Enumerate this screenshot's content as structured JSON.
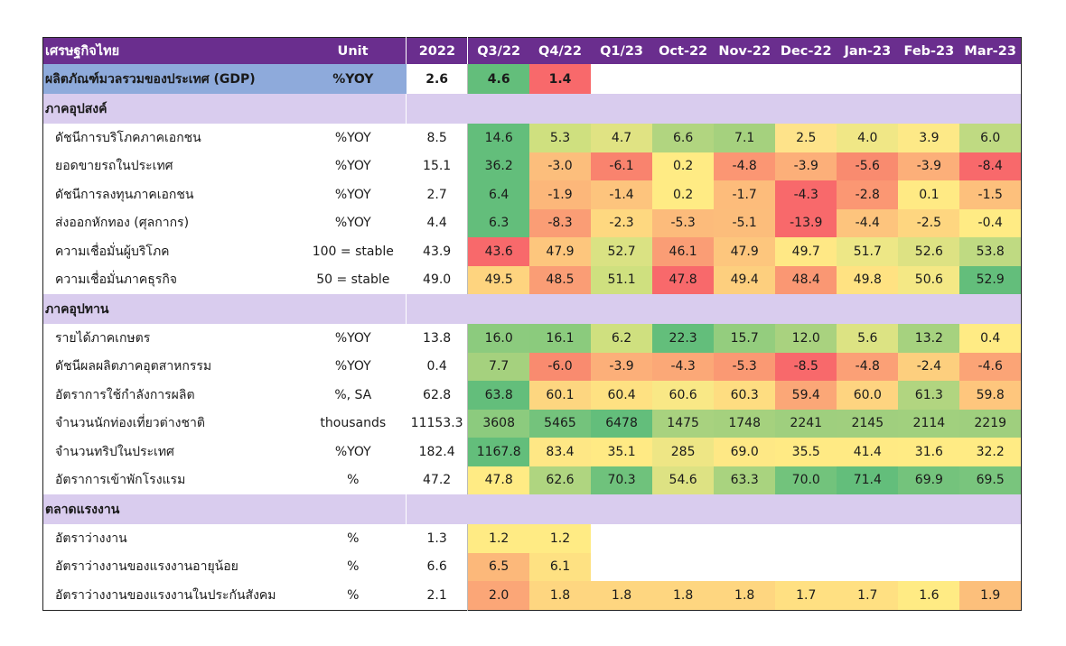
{
  "chart_data": {
    "type": "table",
    "header": {
      "name": "เศรษฐกิจไทย",
      "unit": "Unit",
      "year": "2022",
      "periods": [
        "Q3/22",
        "Q4/22",
        "Q1/23",
        "Oct-22",
        "Nov-22",
        "Dec-22",
        "Jan-23",
        "Feb-23",
        "Mar-23"
      ]
    },
    "gdp": {
      "name": "ผลิตภัณฑ์มวลรวมของประเทศ (GDP)",
      "unit": "%YOY",
      "y2022": "2.6",
      "values": [
        "4.6",
        "1.4",
        "",
        "",
        "",
        "",
        "",
        "",
        ""
      ],
      "colors": [
        "#63be7b",
        "#f8696b",
        "",
        "",
        "",
        "",
        "",
        "",
        ""
      ]
    },
    "sections": [
      {
        "title": "ภาคอุปสงค์",
        "rows": [
          {
            "name": "ดัชนีการบริโภคภาคเอกชน",
            "unit": "%YOY",
            "y2022": "8.5",
            "values": [
              "14.6",
              "5.3",
              "4.7",
              "6.6",
              "7.1",
              "2.5",
              "4.0",
              "3.9",
              "6.0"
            ],
            "colors": [
              "#63be7b",
              "#cfe07f",
              "#e0e383",
              "#b1d580",
              "#a5d17e",
              "#fee38a",
              "#f0e786",
              "#fde987",
              "#bfda82"
            ]
          },
          {
            "name": "ยอดขายรถในประเทศ",
            "unit": "%YOY",
            "y2022": "15.1",
            "values": [
              "36.2",
              "-3.0",
              "-6.1",
              "0.2",
              "-4.8",
              "-3.9",
              "-5.6",
              "-3.9",
              "-8.4"
            ],
            "colors": [
              "#63be7b",
              "#fcbe7c",
              "#f9836e",
              "#ffeb84",
              "#fb9673",
              "#fcaf79",
              "#f98b6f",
              "#fcaf79",
              "#f8696b"
            ]
          },
          {
            "name": "ดัชนีการลงทุนภาคเอกชน",
            "unit": "%YOY",
            "y2022": "2.7",
            "values": [
              "6.4",
              "-1.9",
              "-1.4",
              "0.2",
              "-1.7",
              "-4.3",
              "-2.8",
              "0.1",
              "-1.5"
            ],
            "colors": [
              "#63be7b",
              "#fcb77a",
              "#fdc47d",
              "#ffeb84",
              "#fdbc7b",
              "#f8696b",
              "#fb9773",
              "#ffea84",
              "#fdc07c"
            ]
          },
          {
            "name": "ส่งออกหักทอง (ศุลกากร)",
            "unit": "%YOY",
            "y2022": "4.4",
            "values": [
              "6.3",
              "-8.3",
              "-2.3",
              "-5.3",
              "-5.1",
              "-13.9",
              "-4.4",
              "-2.5",
              "-0.4"
            ],
            "colors": [
              "#63be7b",
              "#fa9d75",
              "#fed880",
              "#fcbb7b",
              "#fcbd7b",
              "#f8696b",
              "#fdc47d",
              "#fed680",
              "#ffeb84"
            ]
          },
          {
            "name": "ความเชื่อมั่นผู้บริโภค",
            "unit": "100 = stable",
            "y2022": "43.9",
            "values": [
              "43.6",
              "47.9",
              "52.7",
              "46.1",
              "47.9",
              "49.7",
              "51.7",
              "52.6",
              "53.8"
            ],
            "colors": [
              "#f8696b",
              "#fdc67d",
              "#dae283",
              "#fa9d75",
              "#fdc67d",
              "#ffe885",
              "#ede786",
              "#dde283",
              "#bfda82"
            ]
          },
          {
            "name": "ความเชื่อมั่นภาคธุรกิจ",
            "unit": "50 = stable",
            "y2022": "49.0",
            "values": [
              "49.5",
              "48.5",
              "51.1",
              "47.8",
              "49.4",
              "48.4",
              "49.8",
              "50.6",
              "52.9"
            ],
            "colors": [
              "#fed47f",
              "#fa9d75",
              "#cfe07f",
              "#f8696b",
              "#fdcf7e",
              "#fa9773",
              "#ffe282",
              "#f4e885",
              "#63be7b"
            ]
          }
        ]
      },
      {
        "title": "ภาคอุปทาน",
        "rows": [
          {
            "name": "รายได้ภาคเกษตร",
            "unit": "%YOY",
            "y2022": "13.8",
            "values": [
              "16.0",
              "16.1",
              "6.2",
              "22.3",
              "15.7",
              "12.0",
              "5.6",
              "13.2",
              "0.4"
            ],
            "colors": [
              "#8ccb7e",
              "#8bcb7d",
              "#cfe07f",
              "#63be7b",
              "#94cd7e",
              "#a9d27f",
              "#dce383",
              "#a6d27f",
              "#ffeb84"
            ]
          },
          {
            "name": "ดัชนีผลผลิตภาคอุตสาหกรรม",
            "unit": "%YOY",
            "y2022": "0.4",
            "values": [
              "7.7",
              "-6.0",
              "-3.9",
              "-4.3",
              "-5.3",
              "-8.5",
              "-4.8",
              "-2.4",
              "-4.6"
            ],
            "colors": [
              "#a5d17e",
              "#f98b6f",
              "#fcaf79",
              "#fba877",
              "#fa9973",
              "#f8696b",
              "#fba076",
              "#fdcf7e",
              "#fba476"
            ]
          },
          {
            "name": "อัตราการใช้กำลังการผลิต",
            "unit": "%, SA",
            "y2022": "62.8",
            "values": [
              "63.8",
              "60.1",
              "60.4",
              "60.6",
              "60.3",
              "59.4",
              "60.0",
              "61.3",
              "59.8"
            ],
            "colors": [
              "#63be7b",
              "#fdd680",
              "#fee182",
              "#f9e886",
              "#fedd81",
              "#fba777",
              "#fed480",
              "#b1d580",
              "#fec67d"
            ]
          },
          {
            "name": "จำนวนนักท่องเที่ยวต่างชาติ",
            "unit": "thousands",
            "y2022": "11153.3",
            "values": [
              "3608",
              "5465",
              "6478",
              "1475",
              "1748",
              "2241",
              "2145",
              "2114",
              "2219"
            ],
            "colors": [
              "#8ccb7e",
              "#74c37c",
              "#63be7b",
              "#a8d27f",
              "#a5d17e",
              "#9fcf7e",
              "#a0cf7e",
              "#a1d07e",
              "#9fcf7e"
            ]
          },
          {
            "name": "จำนวนทริปในประเทศ",
            "unit": "%YOY",
            "y2022": "182.4",
            "values": [
              "1167.8",
              "83.4",
              "35.1",
              "285",
              "69.0",
              "35.5",
              "41.4",
              "31.6",
              "32.2"
            ],
            "colors": [
              "#63be7b",
              "#fee785",
              "#ffea84",
              "#eee685",
              "#fee885",
              "#ffea84",
              "#ffea84",
              "#ffeb84",
              "#ffeb84"
            ]
          },
          {
            "name": "อัตราการเข้าพักโรงแรม",
            "unit": "%",
            "y2022": "47.2",
            "values": [
              "47.8",
              "62.6",
              "70.3",
              "54.6",
              "63.3",
              "70.0",
              "71.4",
              "69.9",
              "69.5"
            ],
            "colors": [
              "#ffeb84",
              "#afd580",
              "#6fc27c",
              "#dde283",
              "#a9d37f",
              "#72c37c",
              "#63be7b",
              "#74c37c",
              "#79c57d"
            ]
          }
        ]
      },
      {
        "title": "ตลาดแรงงาน",
        "rows": [
          {
            "name": "อัตราว่างงาน",
            "unit": "%",
            "y2022": "1.3",
            "values": [
              "1.2",
              "1.2",
              "",
              "",
              "",
              "",
              "",
              "",
              ""
            ],
            "colors": [
              "#ffeb84",
              "#ffeb84",
              "",
              "",
              "",
              "",
              "",
              "",
              ""
            ]
          },
          {
            "name": "อัตราว่างงานของแรงงานอายุน้อย",
            "unit": "%",
            "y2022": "6.6",
            "values": [
              "6.5",
              "6.1",
              "",
              "",
              "",
              "",
              "",
              "",
              ""
            ],
            "colors": [
              "#fcb87a",
              "#fee182",
              "",
              "",
              "",
              "",
              "",
              "",
              ""
            ]
          },
          {
            "name": "อัตราว่างงานของแรงงานในประกันสังคม",
            "unit": "%",
            "y2022": "2.1",
            "values": [
              "2.0",
              "1.8",
              "1.8",
              "1.8",
              "1.8",
              "1.7",
              "1.7",
              "1.6",
              "1.9"
            ],
            "colors": [
              "#fba677",
              "#fed680",
              "#fed680",
              "#fed680",
              "#fed680",
              "#ffe082",
              "#ffe082",
              "#ffeb84",
              "#fcbf7b"
            ]
          }
        ]
      }
    ]
  }
}
